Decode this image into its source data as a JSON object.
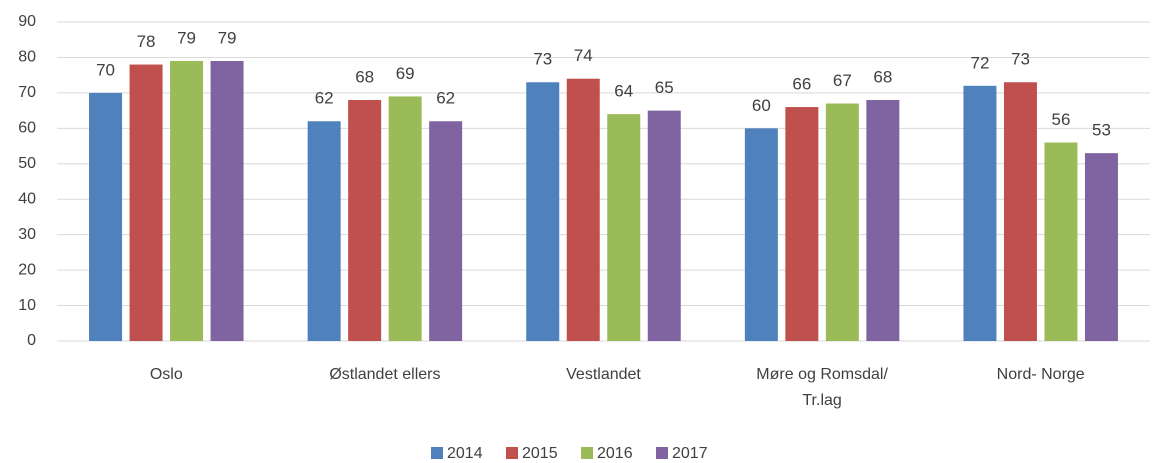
{
  "chart_data": {
    "type": "bar",
    "categories": [
      "Oslo",
      "Østlandet ellers",
      "Vestlandet",
      "Møre og Romsdal/ Tr.lag",
      "Nord- Norge"
    ],
    "series": [
      {
        "name": "2014",
        "color": "#4f81bd",
        "values": [
          70,
          62,
          73,
          60,
          72
        ]
      },
      {
        "name": "2015",
        "color": "#c0504d",
        "values": [
          78,
          68,
          74,
          66,
          73
        ]
      },
      {
        "name": "2016",
        "color": "#9bbb59",
        "values": [
          79,
          69,
          64,
          67,
          56
        ]
      },
      {
        "name": "2017",
        "color": "#8064a2",
        "values": [
          79,
          62,
          65,
          68,
          53
        ]
      }
    ],
    "ylim": [
      0,
      90
    ],
    "yticks": [
      0,
      10,
      20,
      30,
      40,
      50,
      60,
      70,
      80,
      90
    ],
    "grid": true,
    "legend": "bottom"
  }
}
